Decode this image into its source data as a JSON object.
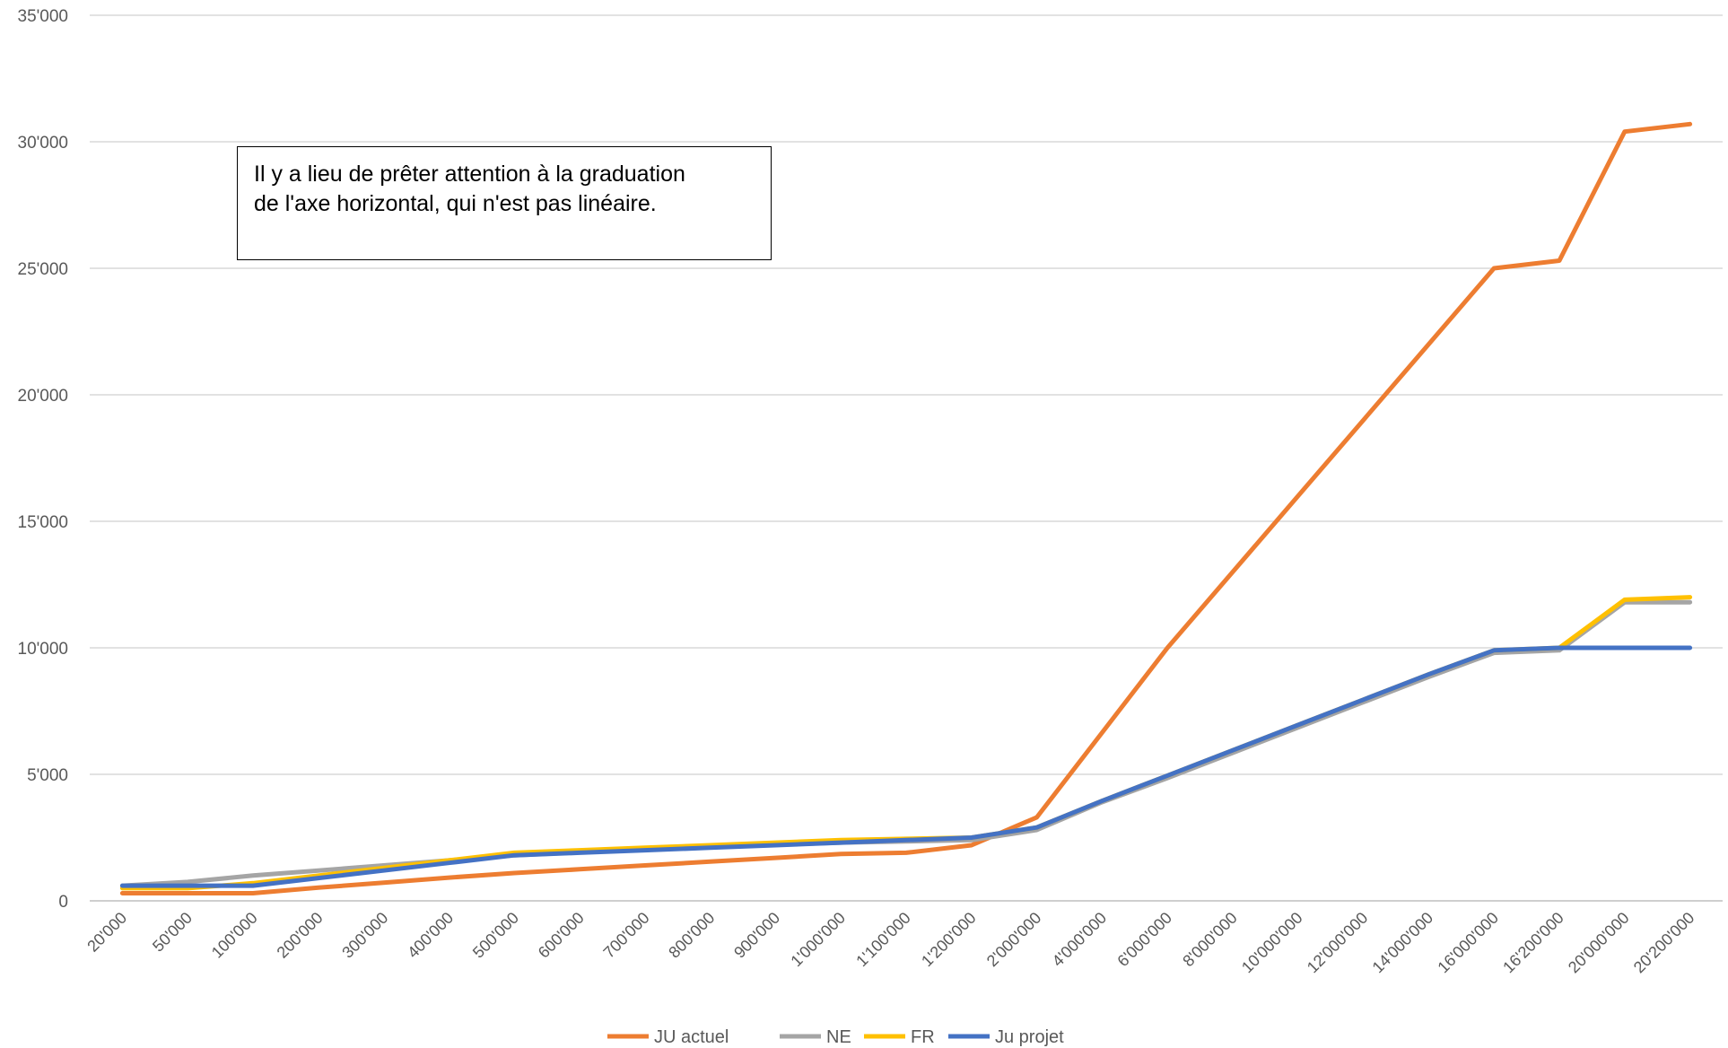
{
  "chart_data": {
    "type": "line",
    "categories": [
      "20'000",
      "50'000",
      "100'000",
      "200'000",
      "300'000",
      "400'000",
      "500'000",
      "600'000",
      "700'000",
      "800'000",
      "900'000",
      "1'000'000",
      "1'100'000",
      "1'200'000",
      "2'000'000",
      "4'000'000",
      "6'000'000",
      "8'000'000",
      "10'000'000",
      "12'000'000",
      "14'000'000",
      "16'000'000",
      "16'200'000",
      "20'000'000",
      "20'200'000"
    ],
    "ylim": [
      0,
      35000
    ],
    "y_ticks": [
      0,
      5000,
      10000,
      15000,
      20000,
      25000,
      30000,
      35000
    ],
    "y_tick_labels": [
      "0",
      "5'000",
      "10'000",
      "15'000",
      "20'000",
      "25'000",
      "30'000",
      "35'000"
    ],
    "grid": true,
    "legend_position": "bottom",
    "series": [
      {
        "name": "JU actuel",
        "color": "#ED7D31",
        "values": [
          300,
          300,
          300,
          520,
          720,
          920,
          1100,
          1250,
          1400,
          1550,
          1700,
          1850,
          1900,
          2200,
          3300,
          6650,
          10000,
          13000,
          16000,
          19000,
          22000,
          25000,
          25300,
          30400,
          30700
        ]
      },
      {
        "name": "NE",
        "color": "#A5A5A5",
        "values": [
          600,
          750,
          1000,
          1200,
          1400,
          1600,
          1800,
          1920,
          2020,
          2120,
          2220,
          2300,
          2350,
          2400,
          2800,
          3900,
          4850,
          5850,
          6850,
          7850,
          8850,
          9800,
          9900,
          11800,
          11800
        ]
      },
      {
        "name": "FR",
        "color": "#FFC000",
        "values": [
          500,
          500,
          700,
          1000,
          1300,
          1600,
          1900,
          2000,
          2100,
          2200,
          2300,
          2400,
          2450,
          2500,
          2900,
          3950,
          4950,
          5950,
          6950,
          7950,
          8950,
          9900,
          10000,
          11900,
          12000
        ]
      },
      {
        "name": "Ju projet",
        "color": "#4472C4",
        "values": [
          600,
          600,
          600,
          900,
          1200,
          1500,
          1800,
          1900,
          2000,
          2100,
          2200,
          2300,
          2400,
          2500,
          2900,
          3950,
          4950,
          5950,
          6950,
          7950,
          8950,
          9900,
          10000,
          10000,
          10000
        ]
      }
    ]
  },
  "annotation": {
    "line1": "Il y a lieu de prêter attention à la graduation",
    "line2": "de l'axe horizontal, qui n'est pas linéaire."
  }
}
